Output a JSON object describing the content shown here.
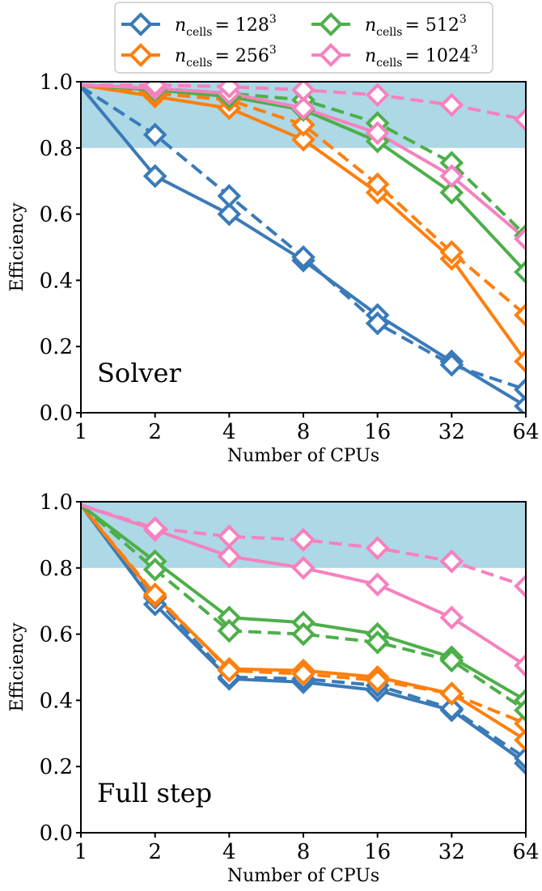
{
  "chart_data": [
    {
      "type": "line",
      "panel_label": "Solver",
      "xlabel": "Number of CPUs",
      "ylabel": "Efficiency",
      "x": [
        1,
        2,
        4,
        8,
        16,
        32,
        64
      ],
      "xscale": "log2",
      "ylim": [
        0.0,
        1.0
      ],
      "yticks": [
        "0.0",
        "0.2",
        "0.4",
        "0.6",
        "0.8",
        "1.0"
      ],
      "xticks": [
        "1",
        "2",
        "4",
        "8",
        "16",
        "32",
        "64"
      ],
      "shaded_band": [
        0.8,
        1.0
      ],
      "shaded_band_color": "#add8e6",
      "grid": false,
      "series": [
        {
          "name_base": "n",
          "name_sub": "cells",
          "name_eq": "= 128",
          "name_sup": "3",
          "color": "#3a7ab8",
          "style": "solid",
          "values": [
            0.985,
            0.715,
            0.6,
            0.46,
            0.295,
            0.155,
            0.02
          ]
        },
        {
          "name_base": "n",
          "name_sub": "cells",
          "name_eq": "= 128",
          "name_sup": "3",
          "color": "#3a7ab8",
          "style": "dashed",
          "values": [
            0.985,
            0.84,
            0.655,
            0.47,
            0.27,
            0.145,
            0.07
          ]
        },
        {
          "name_base": "n",
          "name_sub": "cells",
          "name_eq": "= 256",
          "name_sup": "3",
          "color": "#ff7f0e",
          "style": "solid",
          "values": [
            0.99,
            0.955,
            0.92,
            0.825,
            0.665,
            0.465,
            0.155
          ]
        },
        {
          "name_base": "n",
          "name_sub": "cells",
          "name_eq": "= 256",
          "name_sup": "3",
          "color": "#ff7f0e",
          "style": "dashed",
          "values": [
            0.99,
            0.965,
            0.945,
            0.87,
            0.69,
            0.485,
            0.295
          ]
        },
        {
          "name_base": "n",
          "name_sub": "cells",
          "name_eq": "= 512",
          "name_sup": "3",
          "color": "#4daf4a",
          "style": "solid",
          "values": [
            0.99,
            0.975,
            0.955,
            0.915,
            0.82,
            0.665,
            0.425
          ]
        },
        {
          "name_base": "n",
          "name_sub": "cells",
          "name_eq": "= 512",
          "name_sup": "3",
          "color": "#4daf4a",
          "style": "dashed",
          "values": [
            0.99,
            0.98,
            0.965,
            0.945,
            0.875,
            0.755,
            0.535
          ]
        },
        {
          "name_base": "n",
          "name_sub": "cells",
          "name_eq": "= 1024",
          "name_sup": "3",
          "color": "#f781bf",
          "style": "solid",
          "values": [
            0.99,
            0.98,
            0.965,
            0.92,
            0.845,
            0.715,
            0.525
          ]
        },
        {
          "name_base": "n",
          "name_sub": "cells",
          "name_eq": "= 1024",
          "name_sup": "3",
          "color": "#f781bf",
          "style": "dashed",
          "values": [
            0.99,
            0.99,
            0.985,
            0.975,
            0.96,
            0.93,
            0.885
          ]
        }
      ]
    },
    {
      "type": "line",
      "panel_label": "Full step",
      "xlabel": "Number of CPUs",
      "ylabel": "Efficiency",
      "x": [
        1,
        2,
        4,
        8,
        16,
        32,
        64
      ],
      "xscale": "log2",
      "ylim": [
        0.0,
        1.0
      ],
      "yticks": [
        "0.0",
        "0.2",
        "0.4",
        "0.6",
        "0.8",
        "1.0"
      ],
      "xticks": [
        "1",
        "2",
        "4",
        "8",
        "16",
        "32",
        "64"
      ],
      "shaded_band": [
        0.8,
        1.0
      ],
      "shaded_band_color": "#add8e6",
      "grid": false,
      "series": [
        {
          "name_base": "n",
          "name_sub": "cells",
          "name_eq": "= 128",
          "name_sup": "3",
          "color": "#3a7ab8",
          "style": "solid",
          "values": [
            0.99,
            0.69,
            0.465,
            0.455,
            0.43,
            0.37,
            0.21
          ]
        },
        {
          "name_base": "n",
          "name_sub": "cells",
          "name_eq": "= 128",
          "name_sup": "3",
          "color": "#3a7ab8",
          "style": "dashed",
          "values": [
            0.99,
            0.71,
            0.47,
            0.465,
            0.445,
            0.375,
            0.225
          ]
        },
        {
          "name_base": "n",
          "name_sub": "cells",
          "name_eq": "= 256",
          "name_sup": "3",
          "color": "#ff7f0e",
          "style": "solid",
          "values": [
            0.99,
            0.715,
            0.495,
            0.49,
            0.47,
            0.42,
            0.28
          ]
        },
        {
          "name_base": "n",
          "name_sub": "cells",
          "name_eq": "= 256",
          "name_sup": "3",
          "color": "#ff7f0e",
          "style": "dashed",
          "values": [
            0.99,
            0.72,
            0.49,
            0.48,
            0.46,
            0.42,
            0.33
          ]
        },
        {
          "name_base": "n",
          "name_sub": "cells",
          "name_eq": "= 512",
          "name_sup": "3",
          "color": "#4daf4a",
          "style": "solid",
          "values": [
            0.99,
            0.82,
            0.65,
            0.635,
            0.6,
            0.53,
            0.4
          ]
        },
        {
          "name_base": "n",
          "name_sub": "cells",
          "name_eq": "= 512",
          "name_sup": "3",
          "color": "#4daf4a",
          "style": "dashed",
          "values": [
            0.99,
            0.795,
            0.61,
            0.6,
            0.575,
            0.52,
            0.37
          ]
        },
        {
          "name_base": "n",
          "name_sub": "cells",
          "name_eq": "= 1024",
          "name_sup": "3",
          "color": "#f781bf",
          "style": "solid",
          "values": [
            0.99,
            0.915,
            0.835,
            0.8,
            0.75,
            0.65,
            0.505
          ]
        },
        {
          "name_base": "n",
          "name_sub": "cells",
          "name_eq": "= 1024",
          "name_sup": "3",
          "color": "#f781bf",
          "style": "dashed",
          "values": [
            0.99,
            0.92,
            0.895,
            0.885,
            0.86,
            0.82,
            0.745
          ]
        }
      ]
    }
  ],
  "legend": {
    "placement": "top",
    "entries": [
      {
        "base": "n",
        "sub": "cells",
        "eq": "= 128",
        "sup": "3",
        "color": "#3a7ab8"
      },
      {
        "base": "n",
        "sub": "cells",
        "eq": "= 256",
        "sup": "3",
        "color": "#ff7f0e"
      },
      {
        "base": "n",
        "sub": "cells",
        "eq": "= 512",
        "sup": "3",
        "color": "#4daf4a"
      },
      {
        "base": "n",
        "sub": "cells",
        "eq": "= 1024",
        "sup": "3",
        "color": "#f781bf"
      }
    ]
  }
}
